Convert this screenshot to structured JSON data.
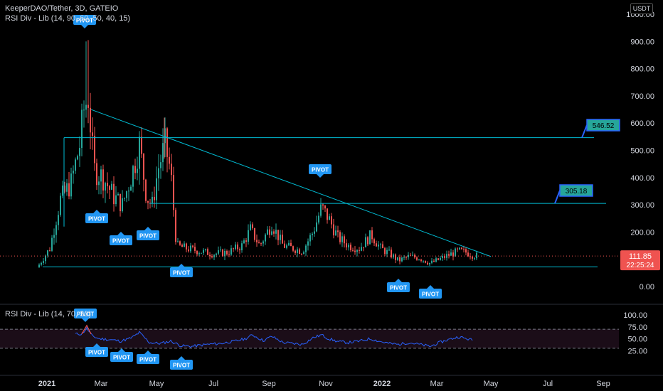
{
  "header": {
    "symbol_line": "KeeperDAO/Tether, 3D, GATEIO",
    "indicator_line": "RSI Div - Lib (14, 90, 60, 50, 40, 15)",
    "currency": "USDT"
  },
  "rsi_pane": {
    "legend": "RSI Div - Lib (14, 70, 30)"
  },
  "colors": {
    "up": "#26a69a",
    "down": "#ef5350",
    "pivot": "#2196f3",
    "trendline": "#00bcd4",
    "rsi": "#2962ff",
    "price_tag": "#ef5350"
  },
  "price_tag": {
    "value": "111.85",
    "countdown": "22:25:24"
  },
  "chart_data": [
    {
      "type": "candlestick",
      "title": "KeeperDAO/Tether, 3D, GATEIO",
      "y_ticks": [
        "1000.00",
        "900.00",
        "800.00",
        "700.00",
        "600.00",
        "500.00",
        "400.00",
        "300.00",
        "200.00",
        "100.00",
        "0.00"
      ],
      "ylim": [
        0,
        1000
      ],
      "x_ticks": [
        "2021",
        "Mar",
        "May",
        "Jul",
        "Sep",
        "Nov",
        "2022",
        "Mar",
        "May",
        "Jul",
        "Sep"
      ],
      "last_price": 111.85,
      "levels": [
        {
          "label": "546.52",
          "value": 546.52
        },
        {
          "label": "305.18",
          "value": 305.18
        },
        {
          "label": "",
          "value": 72
        }
      ],
      "trendline": {
        "from_price": 650,
        "to_price": 110
      },
      "pivot_label": "PIVOT"
    },
    {
      "type": "line",
      "title": "RSI Div - Lib (14, 70, 30)",
      "y_ticks": [
        "100.00",
        "75.00",
        "50.00",
        "25.00"
      ],
      "ylim": [
        0,
        100
      ],
      "bands": [
        70,
        30
      ]
    }
  ]
}
